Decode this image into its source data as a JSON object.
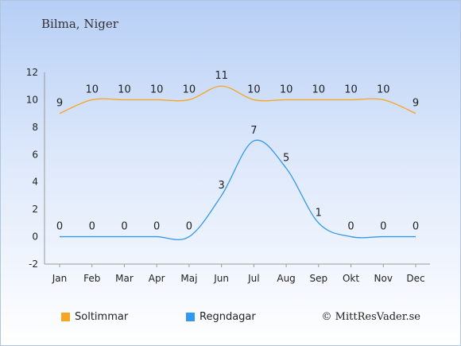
{
  "header": {
    "location": "Bilma, Niger"
  },
  "legend": {
    "sun_label": "Soltimmar",
    "rain_label": "Regndagar"
  },
  "credit": "© MittResVader.se",
  "colors": {
    "sun": "#f5a623",
    "rain": "#3399ee",
    "grid": "#cccccc"
  },
  "chart_data": {
    "type": "line",
    "categories": [
      "Jan",
      "Feb",
      "Mar",
      "Apr",
      "Maj",
      "Jun",
      "Jul",
      "Aug",
      "Sep",
      "Okt",
      "Nov",
      "Dec"
    ],
    "series": [
      {
        "name": "Soltimmar",
        "values": [
          9,
          10,
          10,
          10,
          10,
          11,
          10,
          10,
          10,
          10,
          10,
          9
        ]
      },
      {
        "name": "Regndagar",
        "values": [
          0,
          0,
          0,
          0,
          0,
          3,
          7,
          5,
          1,
          0,
          0,
          0
        ]
      }
    ],
    "yticks": [
      -2,
      0,
      2,
      4,
      6,
      8,
      10,
      12
    ],
    "ylim": [
      -2,
      12
    ],
    "grid": false,
    "legend_position": "bottom-left"
  }
}
